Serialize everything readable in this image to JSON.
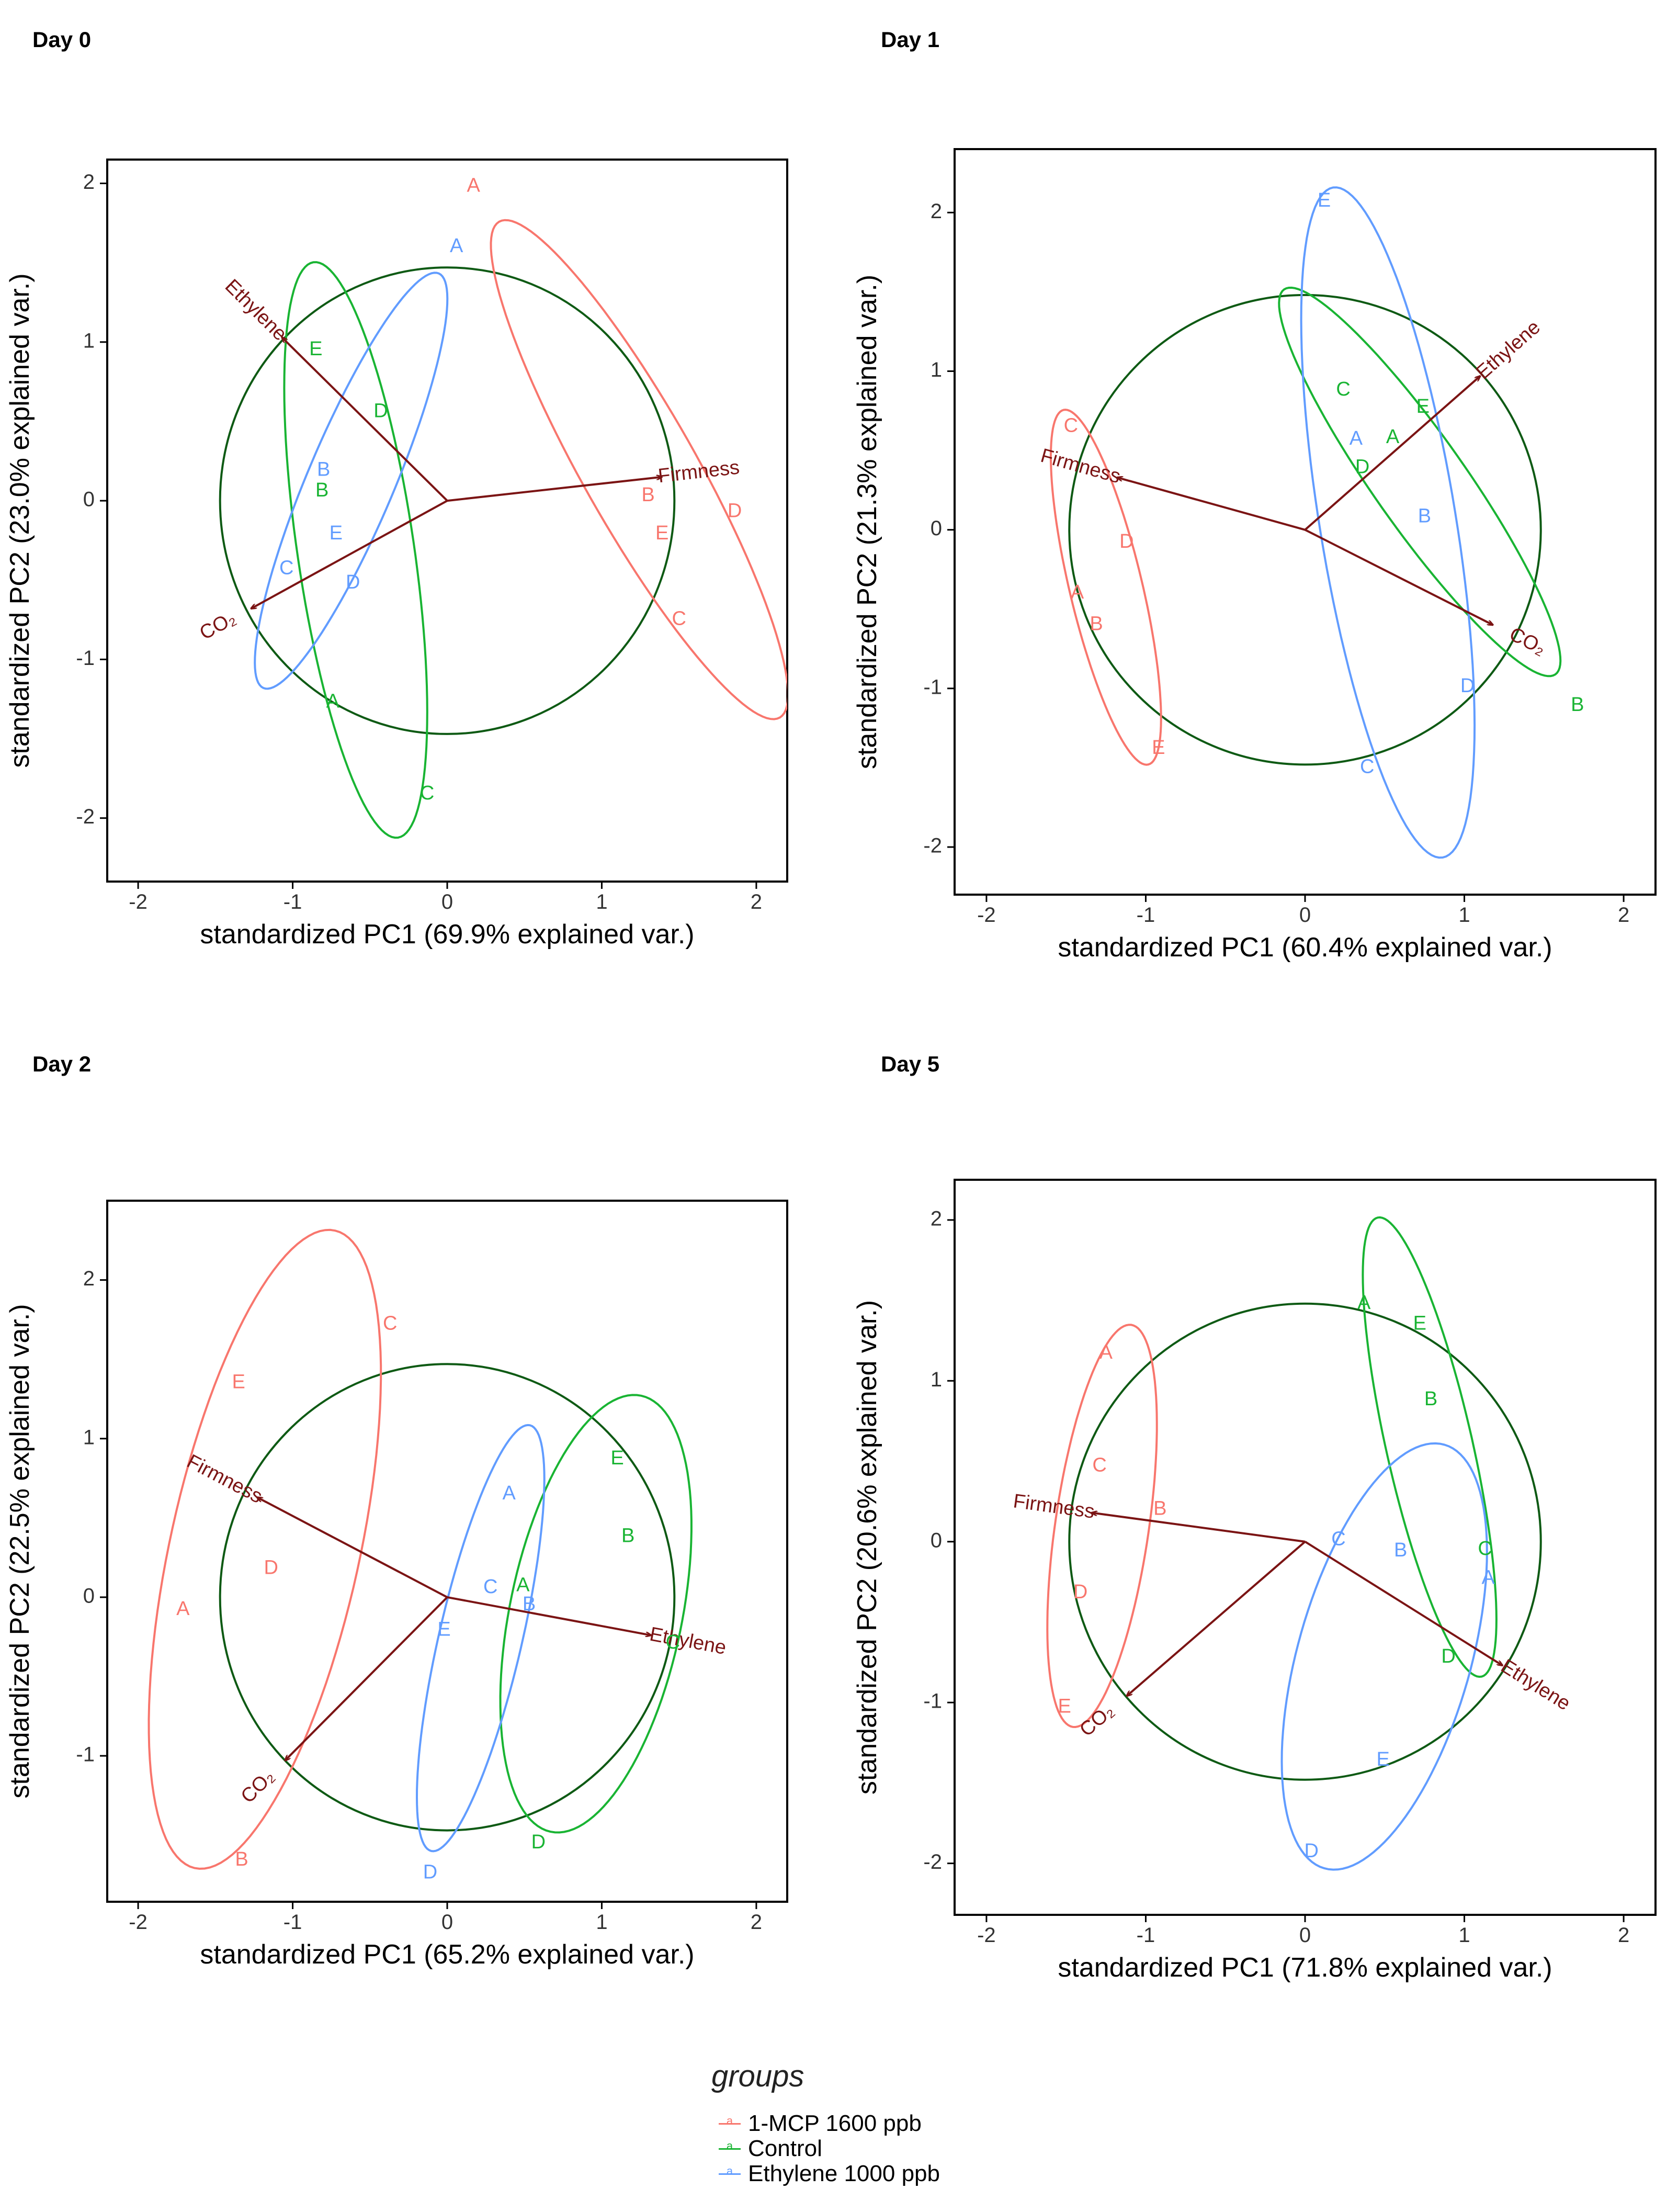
{
  "colors": {
    "mcp": "#F8766D",
    "control": "#19B433",
    "ethylene": "#619CFF",
    "arrow": "#7B1414",
    "circle": "#0E5A14",
    "axis": "#000000"
  },
  "legend": {
    "title": "groups",
    "items": [
      {
        "key": "mcp",
        "label": "1-MCP 1600 ppb"
      },
      {
        "key": "control",
        "label": "Control"
      },
      {
        "key": "ethylene",
        "label": "Ethylene 1000 ppb"
      }
    ]
  },
  "chart_data": [
    {
      "type": "scatter",
      "title": "Day 0",
      "xlabel": "standardized PC1 (69.9% explained var.)",
      "ylabel": "standardized PC2 (23.0% explained var.)",
      "xlim": [
        -2.2,
        2.2
      ],
      "ylim": [
        -2.4,
        2.15
      ],
      "xticks": [
        -2,
        -1,
        0,
        1,
        2
      ],
      "yticks": [
        -2,
        -1,
        0,
        1,
        2
      ],
      "circle_radius": 1.47,
      "arrows": [
        {
          "name": "Ethylene",
          "x": -1.07,
          "y": 1.03
        },
        {
          "name": "Firmness",
          "x": 1.39,
          "y": 0.15
        },
        {
          "name": "CO₂",
          "x": -1.27,
          "y": -0.68
        }
      ],
      "points": [
        {
          "group": "mcp",
          "label": "A",
          "x": 0.17,
          "y": 1.98
        },
        {
          "group": "mcp",
          "label": "B",
          "x": 1.3,
          "y": 0.03
        },
        {
          "group": "mcp",
          "label": "C",
          "x": 1.5,
          "y": -0.75
        },
        {
          "group": "mcp",
          "label": "D",
          "x": 1.86,
          "y": -0.07
        },
        {
          "group": "mcp",
          "label": "E",
          "x": 1.39,
          "y": -0.21
        },
        {
          "group": "control",
          "label": "A",
          "x": -0.74,
          "y": -1.27
        },
        {
          "group": "control",
          "label": "B",
          "x": -0.81,
          "y": 0.06
        },
        {
          "group": "control",
          "label": "C",
          "x": -0.13,
          "y": -1.85
        },
        {
          "group": "control",
          "label": "D",
          "x": -0.43,
          "y": 0.56
        },
        {
          "group": "control",
          "label": "E",
          "x": -0.85,
          "y": 0.95
        },
        {
          "group": "ethylene",
          "label": "A",
          "x": 0.06,
          "y": 1.6
        },
        {
          "group": "ethylene",
          "label": "B",
          "x": -0.8,
          "y": 0.19
        },
        {
          "group": "ethylene",
          "label": "C",
          "x": -1.04,
          "y": -0.43
        },
        {
          "group": "ethylene",
          "label": "D",
          "x": -0.61,
          "y": -0.52
        },
        {
          "group": "ethylene",
          "label": "E",
          "x": -0.72,
          "y": -0.21
        }
      ]
    },
    {
      "type": "scatter",
      "title": "Day 1",
      "xlabel": "standardized PC1 (60.4% explained var.)",
      "ylabel": "standardized PC2 (21.3% explained var.)",
      "xlim": [
        -2.2,
        2.2
      ],
      "ylim": [
        -2.3,
        2.4
      ],
      "xticks": [
        -2,
        -1,
        0,
        1,
        2
      ],
      "yticks": [
        -2,
        -1,
        0,
        1,
        2
      ],
      "circle_radius": 1.48,
      "arrows": [
        {
          "name": "Ethylene",
          "x": 1.1,
          "y": 0.97
        },
        {
          "name": "Firmness",
          "x": -1.18,
          "y": 0.33
        },
        {
          "name": "CO₂",
          "x": 1.18,
          "y": -0.6
        }
      ],
      "points": [
        {
          "group": "mcp",
          "label": "A",
          "x": -1.43,
          "y": -0.4
        },
        {
          "group": "mcp",
          "label": "B",
          "x": -1.31,
          "y": -0.6
        },
        {
          "group": "mcp",
          "label": "C",
          "x": -1.47,
          "y": 0.65
        },
        {
          "group": "mcp",
          "label": "D",
          "x": -1.12,
          "y": -0.08
        },
        {
          "group": "mcp",
          "label": "E",
          "x": -0.92,
          "y": -1.38
        },
        {
          "group": "control",
          "label": "A",
          "x": 0.55,
          "y": 0.58
        },
        {
          "group": "control",
          "label": "B",
          "x": 1.71,
          "y": -1.11
        },
        {
          "group": "control",
          "label": "C",
          "x": 0.24,
          "y": 0.88
        },
        {
          "group": "control",
          "label": "D",
          "x": 0.36,
          "y": 0.39
        },
        {
          "group": "control",
          "label": "E",
          "x": 0.74,
          "y": 0.77
        },
        {
          "group": "ethylene",
          "label": "A",
          "x": 0.32,
          "y": 0.57
        },
        {
          "group": "ethylene",
          "label": "B",
          "x": 0.75,
          "y": 0.08
        },
        {
          "group": "ethylene",
          "label": "C",
          "x": 0.39,
          "y": -1.5
        },
        {
          "group": "ethylene",
          "label": "D",
          "x": 1.02,
          "y": -0.99
        },
        {
          "group": "ethylene",
          "label": "E",
          "x": 0.12,
          "y": 2.07
        }
      ]
    },
    {
      "type": "scatter",
      "title": "Day 2",
      "xlabel": "standardized PC1 (65.2% explained var.)",
      "ylabel": "standardized PC2 (22.5% explained var.)",
      "xlim": [
        -2.2,
        2.2
      ],
      "ylim": [
        -1.92,
        2.5
      ],
      "xticks": [
        -2,
        -1,
        0,
        1,
        2
      ],
      "yticks": [
        -1,
        0,
        1,
        2
      ],
      "circle_radius": 1.47,
      "arrows": [
        {
          "name": "Ethylene",
          "x": 1.32,
          "y": -0.24
        },
        {
          "name": "Firmness",
          "x": -1.23,
          "y": 0.63
        },
        {
          "name": "CO₂",
          "x": -1.05,
          "y": -1.03
        }
      ],
      "points": [
        {
          "group": "mcp",
          "label": "A",
          "x": -1.71,
          "y": -0.08
        },
        {
          "group": "mcp",
          "label": "B",
          "x": -1.33,
          "y": -1.66
        },
        {
          "group": "mcp",
          "label": "C",
          "x": -0.37,
          "y": 1.72
        },
        {
          "group": "mcp",
          "label": "D",
          "x": -1.14,
          "y": 0.18
        },
        {
          "group": "mcp",
          "label": "E",
          "x": -1.35,
          "y": 1.35
        },
        {
          "group": "control",
          "label": "A",
          "x": 0.49,
          "y": 0.07
        },
        {
          "group": "control",
          "label": "B",
          "x": 1.17,
          "y": 0.38
        },
        {
          "group": "control",
          "label": "C",
          "x": 1.46,
          "y": -0.29
        },
        {
          "group": "control",
          "label": "D",
          "x": 0.59,
          "y": -1.55
        },
        {
          "group": "control",
          "label": "E",
          "x": 1.1,
          "y": 0.87
        },
        {
          "group": "ethylene",
          "label": "A",
          "x": 0.4,
          "y": 0.65
        },
        {
          "group": "ethylene",
          "label": "B",
          "x": 0.53,
          "y": -0.05
        },
        {
          "group": "ethylene",
          "label": "C",
          "x": 0.28,
          "y": 0.06
        },
        {
          "group": "ethylene",
          "label": "D",
          "x": -0.11,
          "y": -1.74
        },
        {
          "group": "ethylene",
          "label": "E",
          "x": -0.02,
          "y": -0.21
        }
      ]
    },
    {
      "type": "scatter",
      "title": "Day 5",
      "xlabel": "standardized PC1 (71.8% explained var.)",
      "ylabel": "standardized PC2 (20.6% explained var.)",
      "xlim": [
        -2.2,
        2.2
      ],
      "ylim": [
        -2.32,
        2.25
      ],
      "xticks": [
        -2,
        -1,
        0,
        1,
        2
      ],
      "yticks": [
        -2,
        -1,
        0,
        1,
        2
      ],
      "circle_radius": 1.48,
      "arrows": [
        {
          "name": "Ethylene",
          "x": 1.24,
          "y": -0.77
        },
        {
          "name": "Firmness",
          "x": -1.34,
          "y": 0.18
        },
        {
          "name": "CO₂",
          "x": -1.12,
          "y": -0.96
        }
      ],
      "points": [
        {
          "group": "mcp",
          "label": "A",
          "x": -1.25,
          "y": 1.17
        },
        {
          "group": "mcp",
          "label": "B",
          "x": -0.91,
          "y": 0.2
        },
        {
          "group": "mcp",
          "label": "C",
          "x": -1.29,
          "y": 0.47
        },
        {
          "group": "mcp",
          "label": "D",
          "x": -1.41,
          "y": -0.32
        },
        {
          "group": "mcp",
          "label": "E",
          "x": -1.51,
          "y": -1.03
        },
        {
          "group": "control",
          "label": "A",
          "x": 0.37,
          "y": 1.48
        },
        {
          "group": "control",
          "label": "B",
          "x": 0.79,
          "y": 0.88
        },
        {
          "group": "control",
          "label": "C",
          "x": 1.13,
          "y": -0.05
        },
        {
          "group": "control",
          "label": "D",
          "x": 0.9,
          "y": -0.72
        },
        {
          "group": "control",
          "label": "E",
          "x": 0.72,
          "y": 1.35
        },
        {
          "group": "ethylene",
          "label": "A",
          "x": 1.15,
          "y": -0.23
        },
        {
          "group": "ethylene",
          "label": "B",
          "x": 0.6,
          "y": -0.06
        },
        {
          "group": "ethylene",
          "label": "C",
          "x": 0.21,
          "y": 0.01
        },
        {
          "group": "ethylene",
          "label": "D",
          "x": 0.04,
          "y": -1.93
        },
        {
          "group": "ethylene",
          "label": "E",
          "x": 0.49,
          "y": -1.36
        }
      ]
    }
  ]
}
